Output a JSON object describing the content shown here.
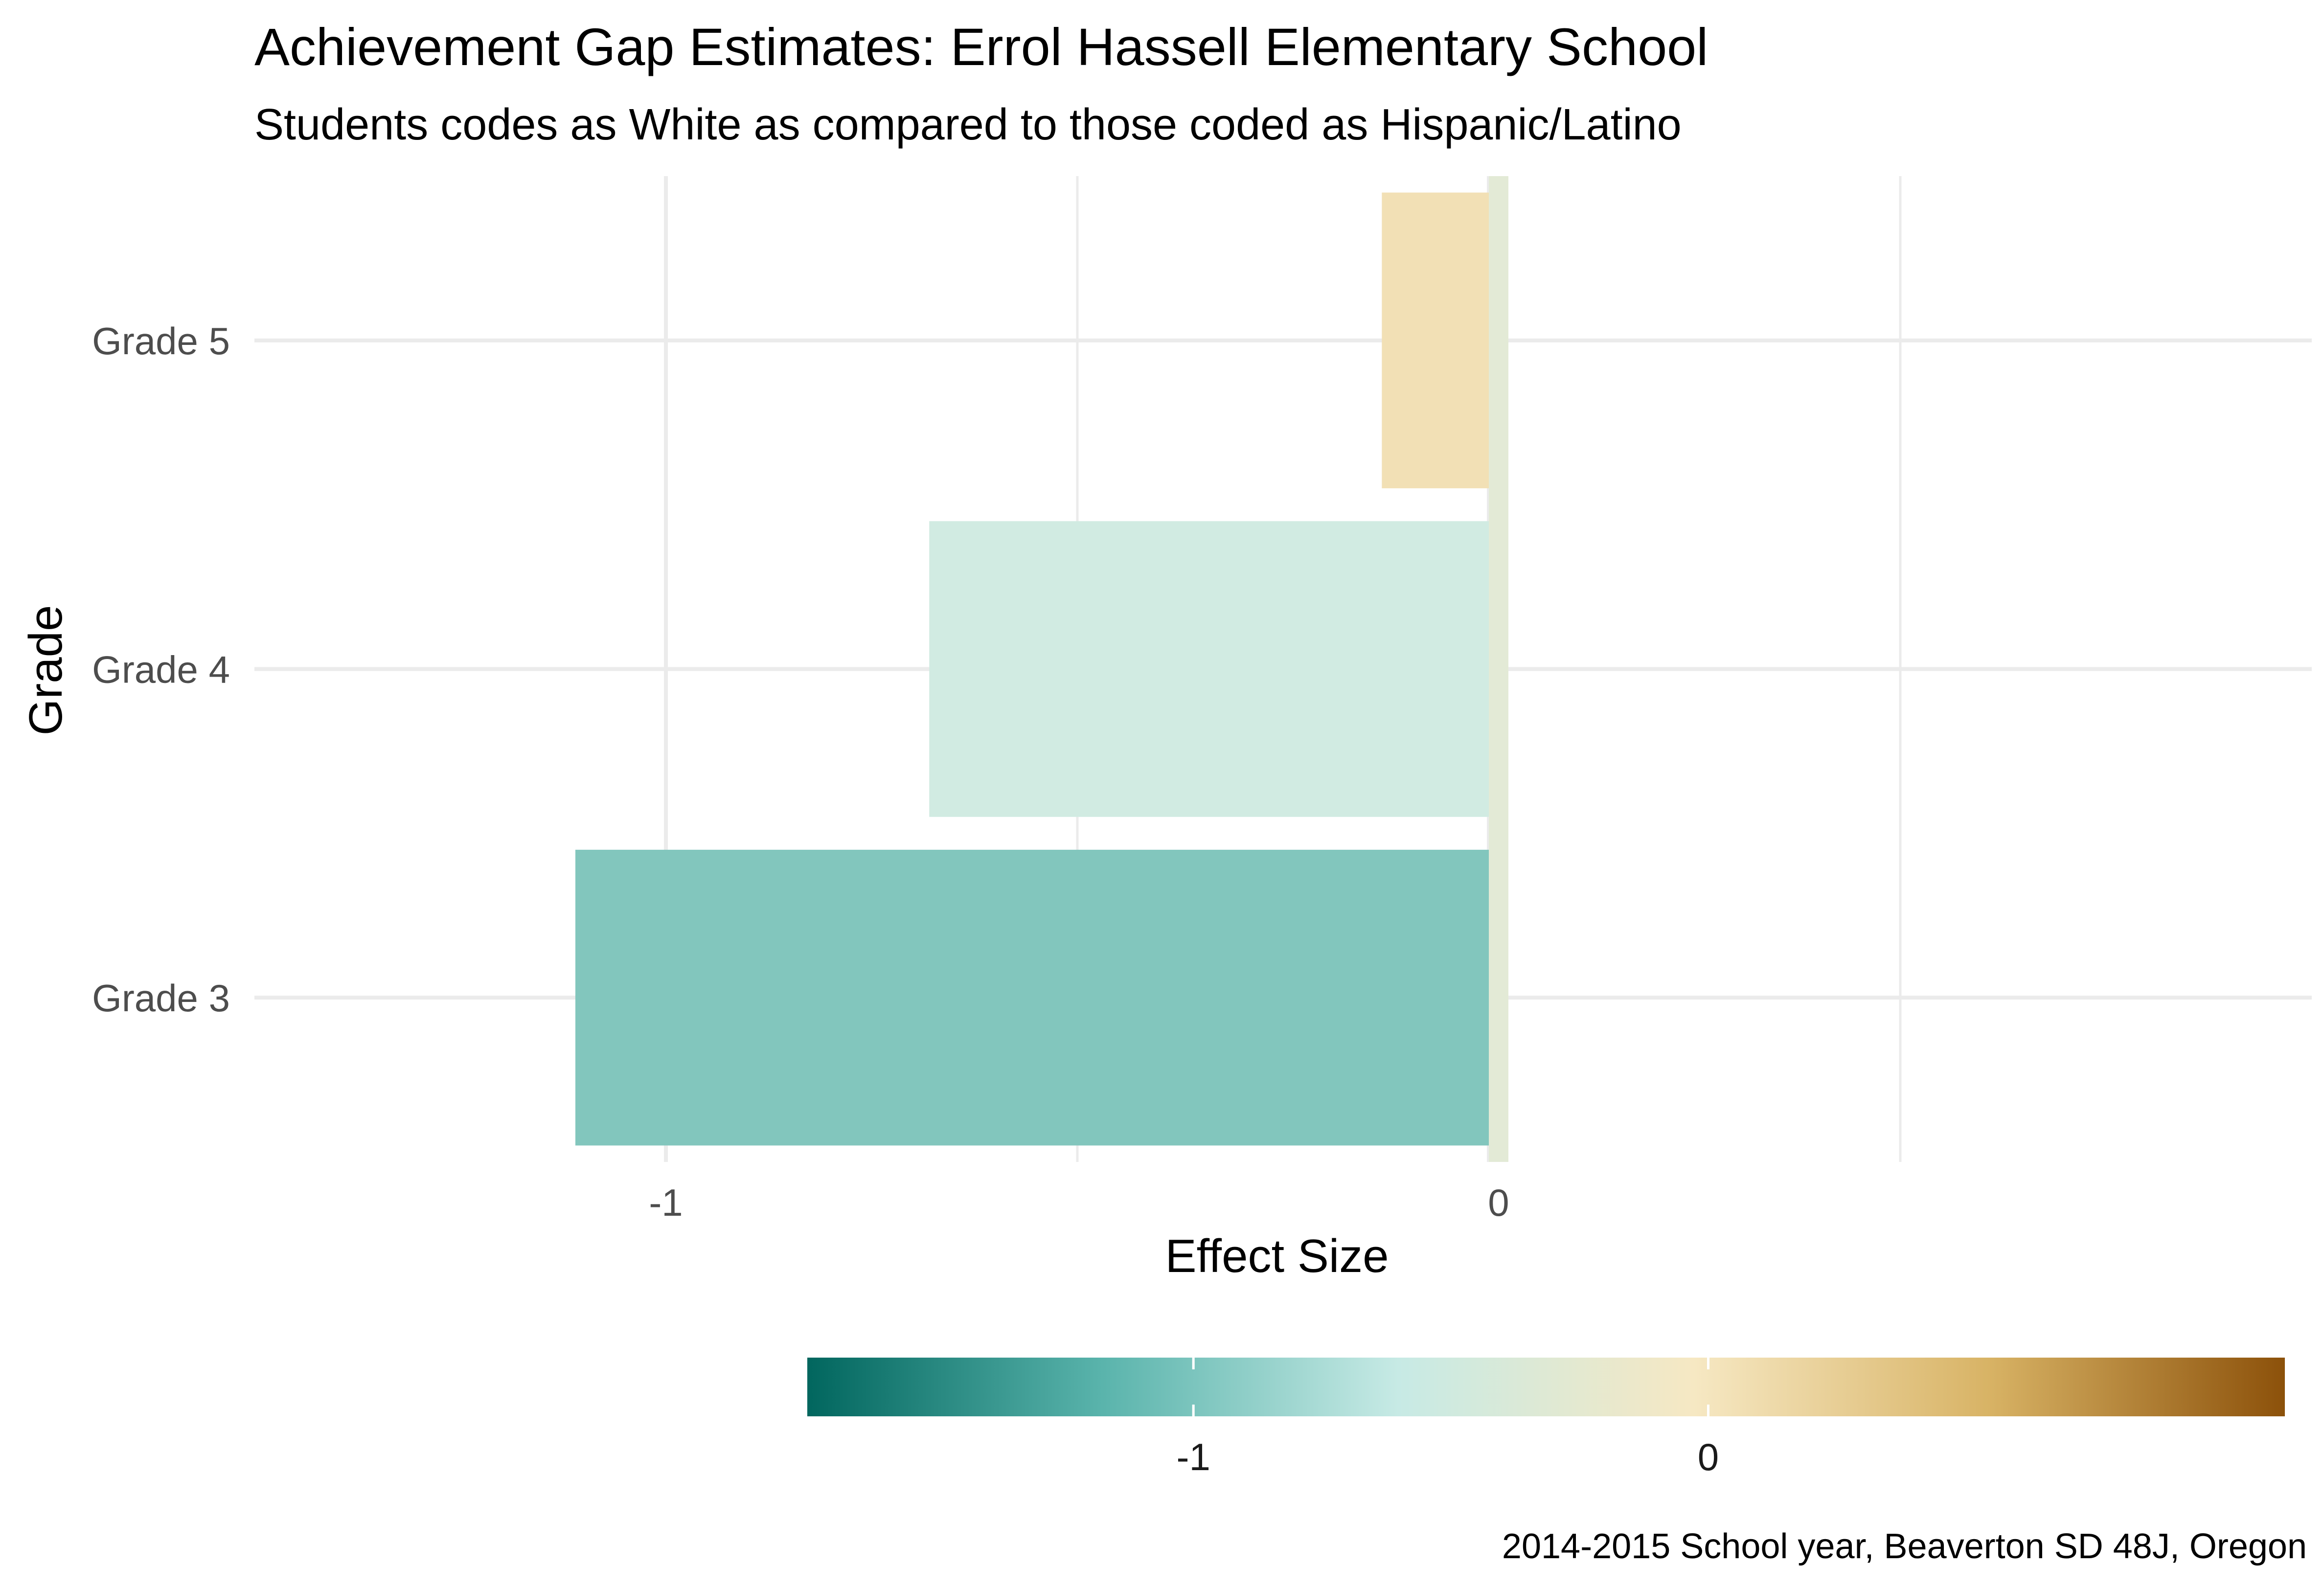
{
  "chart_data": {
    "type": "bar",
    "orientation": "horizontal",
    "title": "Achievement Gap Estimates: Errol Hassell Elementary School",
    "subtitle": "Students codes as White as compared to those coded as Hispanic/Latino",
    "xlabel": "Effect Size",
    "ylabel": "Grade",
    "caption": "2014-2015 School year, Beaverton SD 48J, Oregon",
    "categories": [
      "Grade 3",
      "Grade 4",
      "Grade 5"
    ],
    "values": [
      -1.11,
      -0.68,
      -0.13
    ],
    "xlim": [
      -1.5,
      1.0
    ],
    "x_ticks": [
      -1,
      0
    ],
    "x_tick_labels": [
      "-1",
      "0"
    ],
    "reference_line": 0,
    "grid": true,
    "legend": {
      "type": "colorbar",
      "placement": "bottom",
      "range": [
        -1.75,
        1.12
      ],
      "ticks": [
        -1,
        0
      ],
      "tick_labels": [
        "-1",
        "0"
      ],
      "colors": [
        "#01665e",
        "#5ab4ac",
        "#c7eae5",
        "#f6e8c3",
        "#d8b365",
        "#8c510a"
      ]
    },
    "bar_colors": [
      "#82c6bd",
      "#d1ebe2",
      "#f2e0b5"
    ],
    "reference_color": "#e3ead6"
  }
}
